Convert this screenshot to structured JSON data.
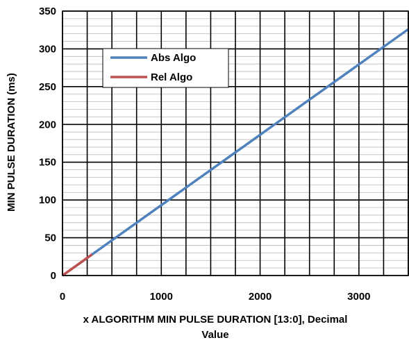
{
  "chart_data": {
    "type": "line",
    "title": "",
    "xlabel_line1": "x  ALGORITHM MIN PULSE DURATION [13:0], Decimal",
    "xlabel_line2": "Value",
    "ylabel": "MIN PULSE DURATION (ms)",
    "xlim": [
      0,
      3500
    ],
    "ylim": [
      0,
      350
    ],
    "x_ticks": [
      0,
      1000,
      2000,
      3000
    ],
    "x_tick_labels": [
      "0",
      "1000",
      "2000",
      "3000"
    ],
    "y_ticks": [
      0,
      50,
      100,
      150,
      200,
      250,
      300,
      350
    ],
    "y_tick_labels": [
      "0",
      "50",
      "100",
      "150",
      "200",
      "250",
      "300",
      "350"
    ],
    "x_minor_grid_step": 250,
    "y_minor_grid_step": 10,
    "grid": true,
    "legend_position": "upper-left",
    "series": [
      {
        "name": "Abs Algo",
        "color": "#4f81bd",
        "x": [
          0,
          3500
        ],
        "y": [
          0,
          326
        ]
      },
      {
        "name": "Rel Algo",
        "color": "#c0504d",
        "x": [
          0,
          300
        ],
        "y": [
          0,
          28
        ]
      }
    ]
  }
}
